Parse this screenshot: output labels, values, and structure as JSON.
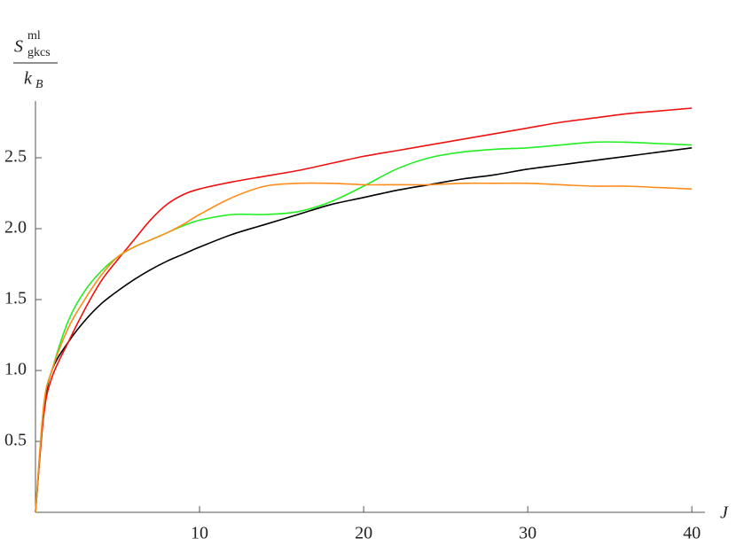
{
  "chart_data": {
    "type": "line",
    "y_label": {
      "symbol": "S",
      "superscript": "ml",
      "subscript": "gkcs",
      "denominator": "k",
      "denominator_subscript": "B"
    },
    "x_label": "J",
    "x": [
      0,
      0.5,
      1,
      2,
      3,
      4,
      5,
      6,
      7,
      8,
      9,
      10,
      12,
      14,
      16,
      18,
      20,
      22,
      24,
      26,
      28,
      30,
      32,
      34,
      36,
      38,
      40
    ],
    "series": [
      {
        "color": "#000000",
        "values": [
          0,
          0.7,
          1.0,
          1.2,
          1.35,
          1.47,
          1.56,
          1.64,
          1.71,
          1.77,
          1.82,
          1.87,
          1.96,
          2.03,
          2.1,
          2.17,
          2.22,
          2.27,
          2.31,
          2.35,
          2.38,
          2.42,
          2.45,
          2.48,
          2.51,
          2.54,
          2.57
        ]
      },
      {
        "color": "#ee1111",
        "values": [
          0,
          0.68,
          0.95,
          1.2,
          1.43,
          1.63,
          1.78,
          1.92,
          2.06,
          2.17,
          2.24,
          2.28,
          2.33,
          2.37,
          2.41,
          2.46,
          2.51,
          2.55,
          2.59,
          2.63,
          2.67,
          2.71,
          2.75,
          2.78,
          2.81,
          2.83,
          2.85
        ]
      },
      {
        "color": "#22ee22",
        "values": [
          0,
          0.75,
          1.0,
          1.35,
          1.56,
          1.7,
          1.8,
          1.87,
          1.92,
          1.97,
          2.02,
          2.06,
          2.1,
          2.1,
          2.12,
          2.19,
          2.3,
          2.42,
          2.5,
          2.54,
          2.56,
          2.57,
          2.59,
          2.61,
          2.61,
          2.6,
          2.59
        ]
      },
      {
        "color": "#ff8c1a",
        "values": [
          0,
          0.75,
          1.0,
          1.3,
          1.5,
          1.67,
          1.8,
          1.87,
          1.92,
          1.97,
          2.03,
          2.1,
          2.22,
          2.3,
          2.32,
          2.32,
          2.31,
          2.31,
          2.31,
          2.32,
          2.32,
          2.32,
          2.31,
          2.3,
          2.3,
          2.29,
          2.28
        ]
      }
    ],
    "xlim": [
      0,
      40.8
    ],
    "ylim": [
      0,
      2.9
    ],
    "xticks": [
      10,
      20,
      30,
      40
    ],
    "yticks": [
      0.5,
      {
        "value": 1.0,
        "label": "1.0"
      },
      1.5,
      {
        "value": 2.0,
        "label": "2.0"
      },
      2.5
    ],
    "grid": false
  }
}
